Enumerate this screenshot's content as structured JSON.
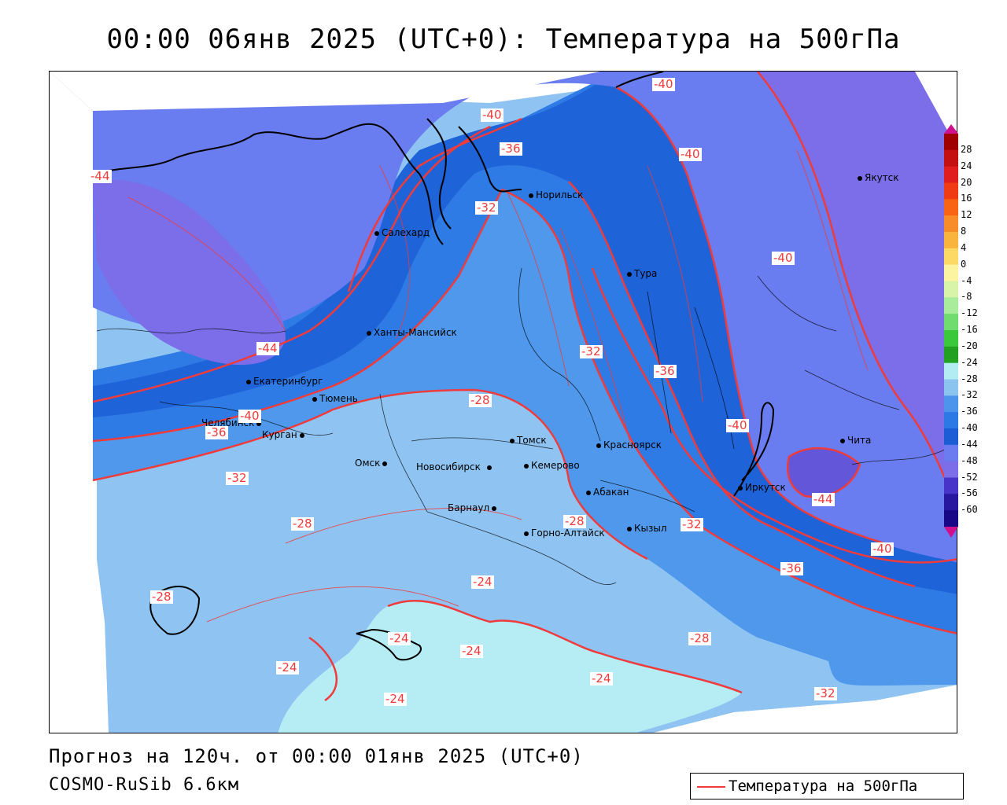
{
  "title": "00:00 06янв 2025 (UTC+0): Температура на 500гПа",
  "footer": {
    "forecast": "Прогноз на 120ч. от 00:00 01янв 2025 (UTC+0)",
    "model": "COSMO-RuSib 6.6км"
  },
  "legend": {
    "label": "Температура на 500гПа",
    "color": "#ef3b3b"
  },
  "colors": {
    "band_m44": "#7b6ee8",
    "band_m40": "#6a7df0",
    "band_m36": "#1f63d8",
    "band_m32": "#2f7be6",
    "band_m28": "#4f98ec",
    "band_m24": "#8fc4f2",
    "band_m20": "#b6ecf4",
    "contour": "#ef3b3b",
    "coast": "#000000"
  },
  "cities": [
    {
      "key": "yakutsk",
      "name": "Якутск"
    },
    {
      "key": "norilsk",
      "name": "Норильск"
    },
    {
      "key": "salekhard",
      "name": "Салехард"
    },
    {
      "key": "tura",
      "name": "Тура"
    },
    {
      "key": "khanty",
      "name": "Ханты-Мансийск"
    },
    {
      "key": "yekaterinburg",
      "name": "Екатеринбург"
    },
    {
      "key": "tyumen",
      "name": "Тюмень"
    },
    {
      "key": "chelyabinsk",
      "name": "Челябинск"
    },
    {
      "key": "kurgan",
      "name": "Курган"
    },
    {
      "key": "omsk",
      "name": "Омск"
    },
    {
      "key": "tomsk",
      "name": "Томск"
    },
    {
      "key": "novosibirsk",
      "name": "Новосибирск"
    },
    {
      "key": "kemerovo",
      "name": "Кемерово"
    },
    {
      "key": "krasnoyarsk",
      "name": "Красноярск"
    },
    {
      "key": "barnaul",
      "name": "Барнаул"
    },
    {
      "key": "abakan",
      "name": "Абакан"
    },
    {
      "key": "gorno",
      "name": "Горно-Алтайск"
    },
    {
      "key": "kyzyl",
      "name": "Кызыл"
    },
    {
      "key": "irkutsk",
      "name": "Иркутск"
    },
    {
      "key": "chita",
      "name": "Чита"
    }
  ],
  "contour_labels": [
    {
      "key": "l1",
      "text": "-40"
    },
    {
      "key": "l2",
      "text": "-40"
    },
    {
      "key": "l3",
      "text": "-36"
    },
    {
      "key": "l4",
      "text": "-40"
    },
    {
      "key": "l5",
      "text": "-44"
    },
    {
      "key": "l6",
      "text": "-32"
    },
    {
      "key": "l7",
      "text": "-40"
    },
    {
      "key": "l8",
      "text": "-44"
    },
    {
      "key": "l9",
      "text": "-32"
    },
    {
      "key": "l10",
      "text": "-36"
    },
    {
      "key": "l11",
      "text": "-28"
    },
    {
      "key": "l12",
      "text": "-40"
    },
    {
      "key": "l13",
      "text": "-36"
    },
    {
      "key": "l14",
      "text": "-40"
    },
    {
      "key": "l15",
      "text": "-32"
    },
    {
      "key": "l16",
      "text": "-44"
    },
    {
      "key": "l17",
      "text": "-28"
    },
    {
      "key": "l18",
      "text": "-28"
    },
    {
      "key": "l19",
      "text": "-32"
    },
    {
      "key": "l20",
      "text": "-40"
    },
    {
      "key": "l21",
      "text": "-28"
    },
    {
      "key": "l22",
      "text": "-24"
    },
    {
      "key": "l23",
      "text": "-36"
    },
    {
      "key": "l24",
      "text": "-24"
    },
    {
      "key": "l25",
      "text": "-24"
    },
    {
      "key": "l26",
      "text": "-28"
    },
    {
      "key": "l27",
      "text": "-24"
    },
    {
      "key": "l28",
      "text": "-24"
    },
    {
      "key": "l29",
      "text": "-24"
    },
    {
      "key": "l30",
      "text": "-32"
    }
  ],
  "scale": {
    "ticks": [
      "28",
      "24",
      "20",
      "16",
      "12",
      "8",
      "4",
      "0",
      "-4",
      "-8",
      "-12",
      "-16",
      "-20",
      "-24",
      "-28",
      "-32",
      "-36",
      "-40",
      "-44",
      "-48",
      "-52",
      "-56",
      "-60"
    ],
    "colors": [
      "#a00000",
      "#c41010",
      "#e01e1e",
      "#f03c14",
      "#f86414",
      "#f88c28",
      "#f8b43c",
      "#fcd864",
      "#fcf4a0",
      "#d8f4a8",
      "#a8ec9c",
      "#70dc70",
      "#3cc83c",
      "#22a022",
      "#b4ecf4",
      "#8cc4f0",
      "#4c94ec",
      "#2c78e4",
      "#1c5cd4",
      "#6a7cf0",
      "#7b6ee8",
      "#4834c8",
      "#2818a0",
      "#180888"
    ]
  }
}
